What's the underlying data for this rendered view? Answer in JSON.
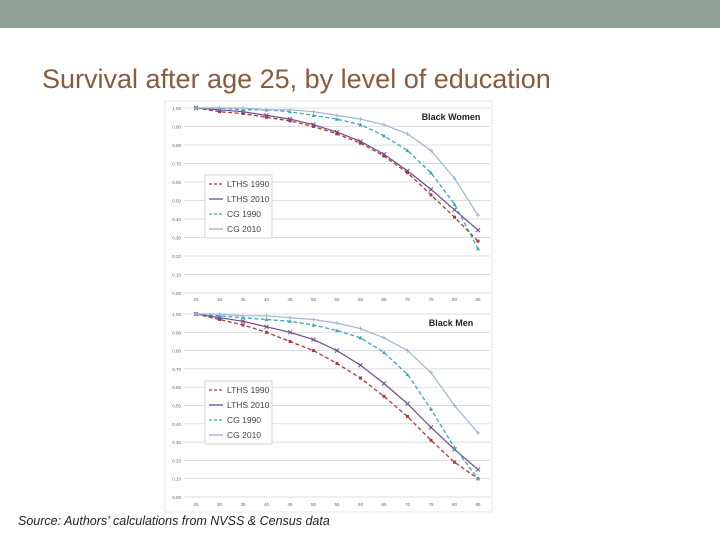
{
  "slide": {
    "title": "Survival after age 25, by level of education",
    "source": "Source: Authors' calculations from NVSS & Census data"
  },
  "colors": {
    "band": "#93a299",
    "title": "#8a5a3c",
    "lths_1990": "#b03a3a",
    "lths_2010": "#6b4a8c",
    "cg_1990": "#3aa5b8",
    "cg_2010": "#9db4cf",
    "grid": "#d0d0d0"
  },
  "chart_data": [
    {
      "type": "line",
      "title": "Black Women",
      "x": [
        25,
        30,
        35,
        40,
        45,
        50,
        55,
        60,
        65,
        70,
        75,
        80,
        85
      ],
      "xticks": [
        "25",
        "30",
        "35",
        "40",
        "45",
        "50",
        "55",
        "60",
        "65",
        "70",
        "75",
        "80",
        "85"
      ],
      "yticks": [
        "0.00",
        "0.10",
        "0.20",
        "0.30",
        "0.40",
        "0.50",
        "0.60",
        "0.70",
        "0.80",
        "0.90",
        "1.00"
      ],
      "ylim": [
        0,
        1
      ],
      "grid": true,
      "legend_position": "middle-left",
      "series": [
        {
          "name": "LTHS 1990",
          "style": "dashed",
          "color_key": "lths_1990",
          "values": [
            1.0,
            0.98,
            0.97,
            0.95,
            0.93,
            0.9,
            0.86,
            0.81,
            0.74,
            0.65,
            0.53,
            0.41,
            0.28
          ]
        },
        {
          "name": "LTHS 2010",
          "style": "solid",
          "color_key": "lths_2010",
          "values": [
            1.0,
            0.99,
            0.98,
            0.96,
            0.94,
            0.91,
            0.87,
            0.82,
            0.75,
            0.66,
            0.56,
            0.45,
            0.34
          ]
        },
        {
          "name": "CG 1990",
          "style": "dashed",
          "color_key": "cg_1990",
          "values": [
            1.0,
            1.0,
            0.99,
            0.99,
            0.98,
            0.96,
            0.94,
            0.91,
            0.85,
            0.77,
            0.65,
            0.48,
            0.24
          ]
        },
        {
          "name": "CG 2010",
          "style": "solid",
          "color_key": "cg_2010",
          "values": [
            1.0,
            1.0,
            1.0,
            0.99,
            0.99,
            0.98,
            0.96,
            0.94,
            0.91,
            0.86,
            0.77,
            0.62,
            0.42
          ]
        }
      ]
    },
    {
      "type": "line",
      "title": "Black Men",
      "x": [
        25,
        30,
        35,
        40,
        45,
        50,
        55,
        60,
        65,
        70,
        75,
        80,
        85
      ],
      "xticks": [
        "25",
        "30",
        "35",
        "40",
        "45",
        "50",
        "55",
        "60",
        "65",
        "70",
        "75",
        "80",
        "85"
      ],
      "yticks": [
        "0.00",
        "0.10",
        "0.20",
        "0.30",
        "0.40",
        "0.50",
        "0.60",
        "0.70",
        "0.80",
        "0.90",
        "1.00"
      ],
      "ylim": [
        0,
        1
      ],
      "grid": true,
      "legend_position": "middle-left",
      "series": [
        {
          "name": "LTHS 1990",
          "style": "dashed",
          "color_key": "lths_1990",
          "values": [
            1.0,
            0.97,
            0.94,
            0.9,
            0.85,
            0.8,
            0.73,
            0.65,
            0.55,
            0.44,
            0.31,
            0.19,
            0.1
          ]
        },
        {
          "name": "LTHS 2010",
          "style": "solid",
          "color_key": "lths_2010",
          "values": [
            1.0,
            0.98,
            0.96,
            0.93,
            0.9,
            0.86,
            0.8,
            0.72,
            0.62,
            0.51,
            0.38,
            0.26,
            0.15
          ]
        },
        {
          "name": "CG 1990",
          "style": "dashed",
          "color_key": "cg_1990",
          "values": [
            1.0,
            0.99,
            0.98,
            0.97,
            0.96,
            0.94,
            0.91,
            0.87,
            0.79,
            0.67,
            0.48,
            0.27,
            0.1
          ]
        },
        {
          "name": "CG 2010",
          "style": "solid",
          "color_key": "cg_2010",
          "values": [
            1.0,
            1.0,
            0.99,
            0.99,
            0.98,
            0.97,
            0.95,
            0.92,
            0.87,
            0.8,
            0.68,
            0.5,
            0.35
          ]
        }
      ]
    }
  ]
}
